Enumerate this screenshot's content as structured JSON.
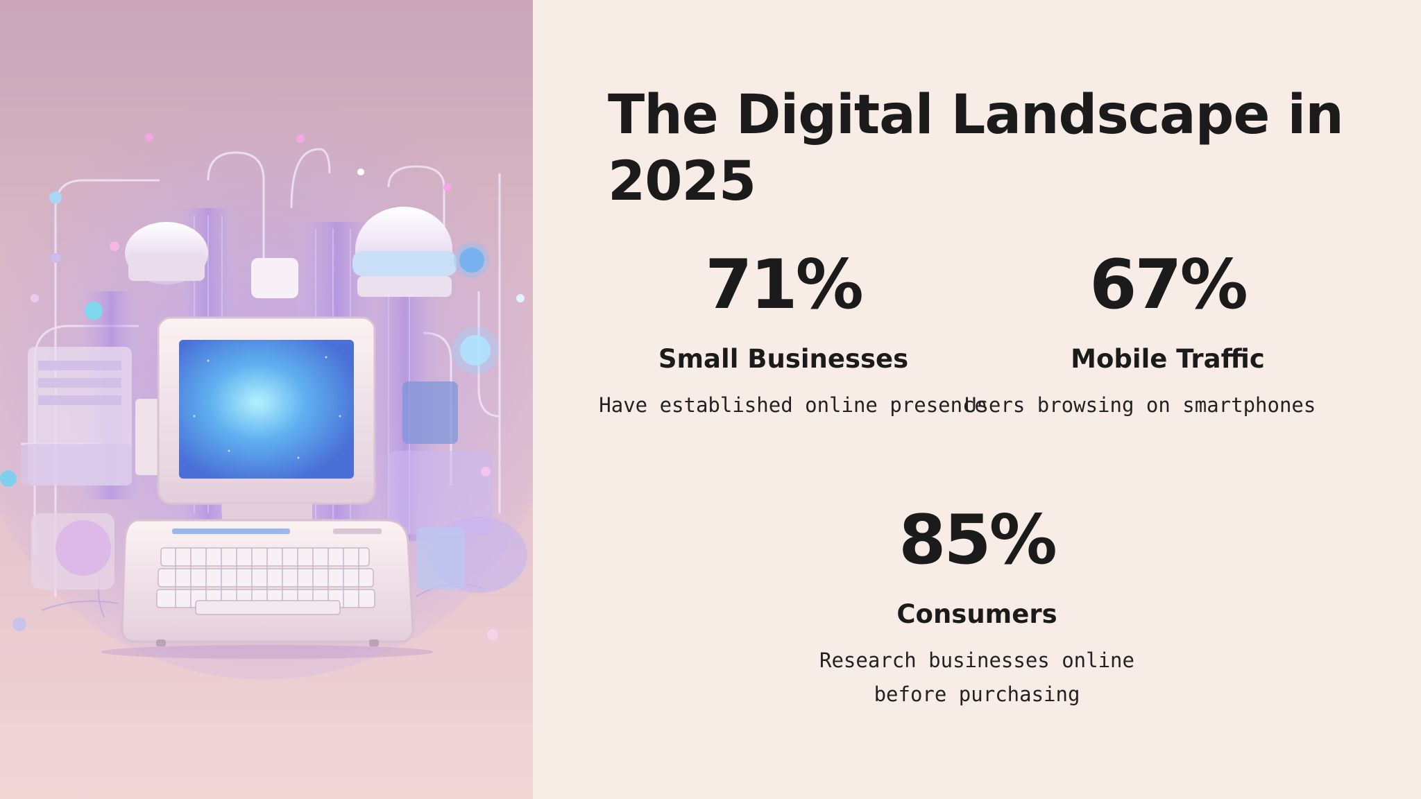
{
  "slide": {
    "title": "The Digital Landscape in 2025",
    "stats": [
      {
        "value": "71%",
        "label": "Small Businesses",
        "description": "Have established online presence"
      },
      {
        "value": "67%",
        "label": "Mobile Traffic",
        "description": "Users browsing on smartphones"
      },
      {
        "value": "85%",
        "label": "Consumers",
        "description": "Research businesses online before purchasing"
      }
    ]
  },
  "illustration": {
    "subject": "retro-computer-illustration-icon",
    "colors": {
      "screen": "#5aa8ec",
      "accent": "#a987e6",
      "body": "#f3e6ea"
    }
  }
}
